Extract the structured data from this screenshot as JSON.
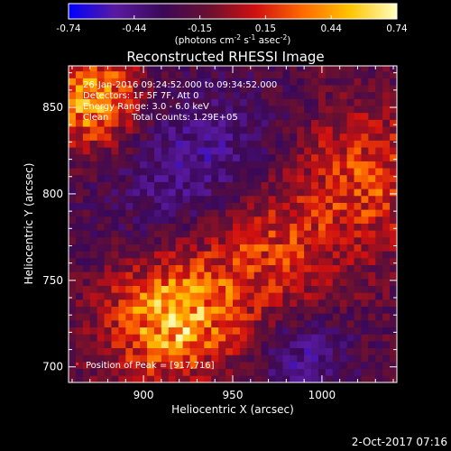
{
  "chart_data": {
    "type": "heatmap",
    "title": "Reconstructed RHESSI Image",
    "xlabel": "Heliocentric X (arcsec)",
    "ylabel": "Heliocentric Y (arcsec)",
    "xlim": [
      858,
      1042
    ],
    "ylim": [
      691,
      874
    ],
    "x_ticks": [
      900,
      950,
      1000
    ],
    "y_ticks": [
      700,
      750,
      800,
      850
    ],
    "colorbar": {
      "min": -0.74,
      "max": 0.74,
      "tick_labels": [
        "-0.74",
        "-0.44",
        "-0.15",
        "0.15",
        "0.44",
        "0.74"
      ],
      "unit_label": "(photons cm",
      "unit_sup1": "-2",
      "unit_mid": " s",
      "unit_sup2": "-1",
      "unit_mid2": " asec",
      "unit_sup3": "-2",
      "unit_end": ")",
      "colors": [
        "#0000ff",
        "#5a1aa0",
        "#3a0858",
        "#6a1030",
        "#d01010",
        "#ff6a00",
        "#ffc400",
        "#ffffc0"
      ]
    },
    "grid": false,
    "peak": {
      "x": 917,
      "y": 716
    },
    "pixel_size_arcsec": 4,
    "intensity_sources": [
      {
        "x": 870,
        "y": 855,
        "sigma": 20,
        "amp": 0.65
      },
      {
        "x": 915,
        "y": 728,
        "sigma": 24,
        "amp": 0.7
      },
      {
        "x": 965,
        "y": 770,
        "sigma": 30,
        "amp": 0.45
      },
      {
        "x": 1025,
        "y": 810,
        "sigma": 28,
        "amp": 0.4
      },
      {
        "x": 935,
        "y": 810,
        "sigma": 35,
        "amp": -0.35
      },
      {
        "x": 990,
        "y": 705,
        "sigma": 18,
        "amp": -0.3
      }
    ],
    "annotations": {
      "time": "26-Jan-2016 09:24:52.000 to 09:34:52.000",
      "detectors": "Detectors: 1F 5F 7F, Att 0",
      "energy": "Energy Range: 3.0 - 6.0 keV",
      "clean": "Clean",
      "counts": "Total Counts: 1.29E+05",
      "peak": "Position of Peak = [917,716]"
    }
  },
  "footer": {
    "timestamp": "2-Oct-2017 07:16"
  }
}
